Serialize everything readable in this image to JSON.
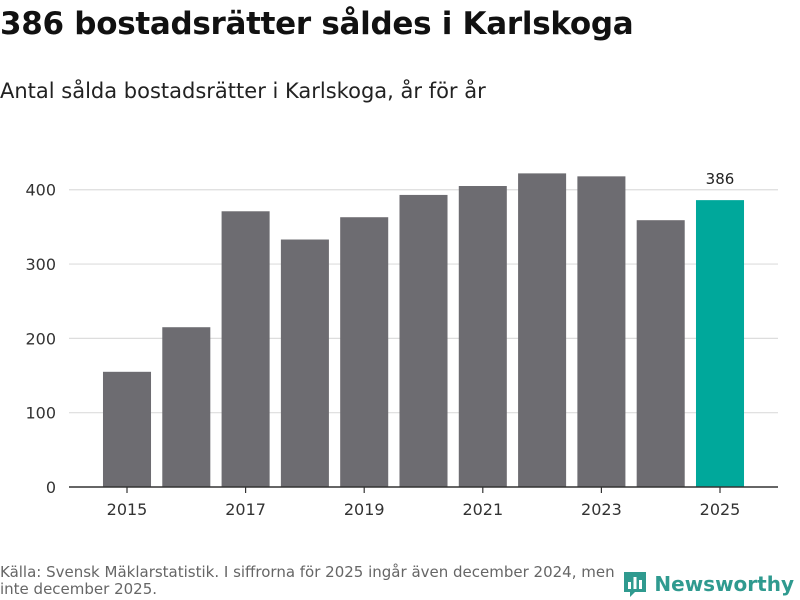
{
  "header": {
    "title": "386 bostadsrätter såldes i Karlskoga",
    "subtitle": "Antal sålda bostadsrätter i Karlskoga, år för år"
  },
  "chart_data": {
    "type": "bar",
    "title": "386 bostadsrätter såldes i Karlskoga",
    "subtitle": "Antal sålda bostadsrätter i Karlskoga, år för år",
    "categories": [
      2015,
      2016,
      2017,
      2018,
      2019,
      2020,
      2021,
      2022,
      2023,
      2024,
      2025
    ],
    "values": [
      155,
      215,
      371,
      333,
      363,
      393,
      405,
      422,
      418,
      359,
      386
    ],
    "x_tick_labels": [
      "2015",
      "2017",
      "2019",
      "2021",
      "2023",
      "2025"
    ],
    "y_ticks": [
      0,
      100,
      200,
      300,
      400
    ],
    "ylim": [
      0,
      440
    ],
    "xlabel": "",
    "ylabel": "",
    "grid": true,
    "highlight": {
      "category": 2025,
      "value_label": "386"
    },
    "colors": {
      "bar": "#6d6c71",
      "highlight": "#00a89b",
      "grid": "#dddddd",
      "axis": "#333333"
    }
  },
  "footer": {
    "source": "Källa: Svensk Mäklarstatistik. I siffrorna för 2025 ingår även december 2024, men inte december 2025.",
    "brand": "Newsworthy",
    "brand_icon": "newsworthy-logo-icon"
  }
}
